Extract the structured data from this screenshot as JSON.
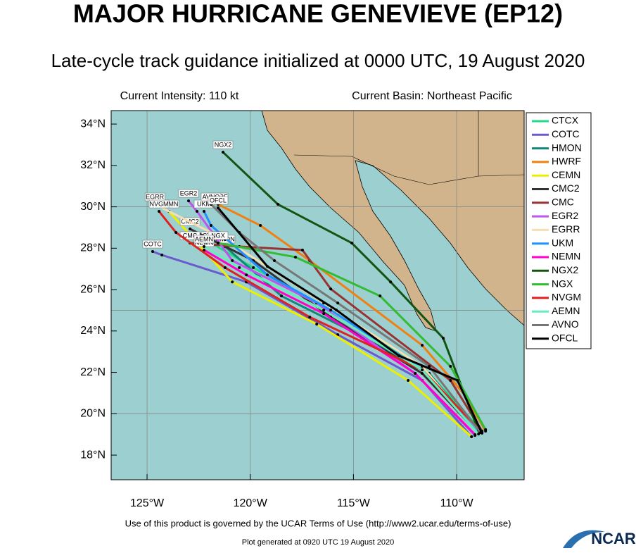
{
  "chart_data": {
    "type": "line",
    "title": "MAJOR HURRICANE GENEVIEVE (EP12)",
    "subtitle": "Late-cycle track guidance initialized at 0000 UTC, 19 August 2020",
    "intensity": "Current Intensity: 110 kt",
    "basin": "Current Basin: Northeast Pacific",
    "footer": "Use of this product is governed by the UCAR Terms of Use (http://www2.ucar.edu/terms-of-use)",
    "generated": "Plot generated at 0920 UTC   19 August 2020",
    "logo": "NCAR",
    "xlim": [
      -126.74,
      -106.73
    ],
    "ylim": [
      16.81,
      34.65
    ],
    "xticks": [
      {
        "value": -125,
        "label": "125°W"
      },
      {
        "value": -120,
        "label": "120°W"
      },
      {
        "value": -115,
        "label": "115°W"
      },
      {
        "value": -110,
        "label": "110°W"
      }
    ],
    "yticks": [
      {
        "value": 18,
        "label": "18°N"
      },
      {
        "value": 20,
        "label": "20°N"
      },
      {
        "value": 22,
        "label": "22°N"
      },
      {
        "value": 24,
        "label": "24°N"
      },
      {
        "value": 26,
        "label": "26°N"
      },
      {
        "value": 28,
        "label": "28°N"
      },
      {
        "value": 30,
        "label": "30°N"
      },
      {
        "value": 32,
        "label": "32°N"
      },
      {
        "value": 34,
        "label": "34°N"
      }
    ],
    "grid_lon": [
      -125,
      -120,
      -115,
      -110
    ],
    "grid_lat": [
      20,
      25,
      30
    ],
    "series": [
      {
        "name": "CTCX",
        "color": "#22dd88",
        "lon": [
          -108.77,
          -111.67,
          -116.1,
          -119.85,
          -121.9
        ],
        "lat": [
          19.16,
          22.29,
          25.01,
          27.06,
          28.25
        ]
      },
      {
        "name": "COTC",
        "color": "#6a5acd",
        "lon": [
          -109.28,
          -111.67,
          -115.76,
          -120.19,
          -124.28,
          -124.73
        ],
        "lat": [
          18.89,
          21.61,
          23.82,
          26.37,
          27.67,
          27.84
        ]
      },
      {
        "name": "HMON",
        "color": "#118877",
        "lon": [
          -108.94,
          -111.33,
          -115.08,
          -118.49,
          -121.22
        ],
        "lat": [
          19.06,
          21.95,
          23.99,
          25.69,
          28.08
        ]
      },
      {
        "name": "HWRF",
        "color": "#f08010",
        "lon": [
          -108.6,
          -109.62,
          -111.67,
          -117.12,
          -119.51,
          -121.56
        ],
        "lat": [
          19.16,
          20.93,
          23.31,
          27.4,
          29.1,
          30.12
        ]
      },
      {
        "name": "CEMN",
        "color": "#eeee00",
        "lon": [
          -109.28,
          -112.35,
          -116.78,
          -120.87,
          -123.94
        ],
        "lat": [
          18.89,
          21.61,
          24.33,
          26.37,
          29.78
        ]
      },
      {
        "name": "CMC2",
        "color": "#333333",
        "lon": [
          -108.94,
          -111.67,
          -116.1,
          -119.85,
          -122.92
        ],
        "lat": [
          19.06,
          21.95,
          24.67,
          27.4,
          28.93
        ]
      },
      {
        "name": "CMC",
        "color": "#993333",
        "lon": [
          -108.77,
          -110.3,
          -116.1,
          -117.47,
          -120.53,
          -122.92
        ],
        "lat": [
          19.16,
          21.61,
          26.03,
          27.91,
          28.08,
          28.25
        ]
      },
      {
        "name": "EGR2",
        "color": "#bb55ee",
        "lon": [
          -109.11,
          -112.01,
          -116.78,
          -120.87,
          -122.58,
          -122.99
        ],
        "lat": [
          18.95,
          21.95,
          25.35,
          27.4,
          29.78,
          30.29
        ]
      },
      {
        "name": "EGRR",
        "color": "#f5deb3",
        "lon": [
          -108.94,
          -111.67,
          -116.44,
          -121.22,
          -124.62
        ],
        "lat": [
          19.06,
          22.29,
          25.35,
          28.42,
          30.12
        ]
      },
      {
        "name": "UKM",
        "color": "#1e90ff",
        "lon": [
          -108.94,
          -111.67,
          -116.1,
          -119.17,
          -121.9,
          -122.24
        ],
        "lat": [
          19.06,
          22.12,
          25.01,
          26.71,
          29.1,
          29.78
        ]
      },
      {
        "name": "NEMN",
        "color": "#ff00cc",
        "lon": [
          -109.11,
          -112.01,
          -116.44,
          -120.19,
          -122.24
        ],
        "lat": [
          18.99,
          21.95,
          24.84,
          26.71,
          27.91
        ]
      },
      {
        "name": "NGX2",
        "color": "#115511",
        "lon": [
          -108.94,
          -110.65,
          -113.2,
          -115.08,
          -118.66,
          -121.32
        ],
        "lat": [
          19.16,
          23.65,
          26.37,
          28.25,
          30.12,
          32.64
        ]
      },
      {
        "name": "NGX",
        "color": "#33bb33",
        "lon": [
          -108.6,
          -110.3,
          -113.71,
          -117.81,
          -121.56
        ],
        "lat": [
          19.23,
          22.29,
          25.69,
          27.57,
          28.25
        ]
      },
      {
        "name": "NVGM",
        "color": "#dd2222",
        "lon": [
          -108.77,
          -111.67,
          -117.12,
          -121.22,
          -123.6,
          -124.42
        ],
        "lat": [
          19.09,
          22.12,
          24.67,
          27.06,
          28.76,
          29.78
        ]
      },
      {
        "name": "AEMN",
        "color": "#66eebb",
        "lon": [
          -108.94,
          -111.67,
          -116.44,
          -120.53,
          -122.24
        ],
        "lat": [
          19.02,
          22.12,
          25.01,
          27.06,
          28.08
        ]
      },
      {
        "name": "AVNO",
        "color": "#777777",
        "lon": [
          -108.84,
          -111.33,
          -115.76,
          -118.83,
          -120.53,
          -121.9
        ],
        "lat": [
          19.09,
          22.29,
          25.35,
          27.4,
          28.76,
          30.12
        ]
      },
      {
        "name": "OFCL",
        "color": "#000000",
        "lon": [
          -108.77,
          -109.96,
          -112.79,
          -115.83,
          -119.17,
          -121.56
        ],
        "lat": [
          19.06,
          21.61,
          22.8,
          25.01,
          27.12,
          29.95
        ]
      }
    ]
  }
}
